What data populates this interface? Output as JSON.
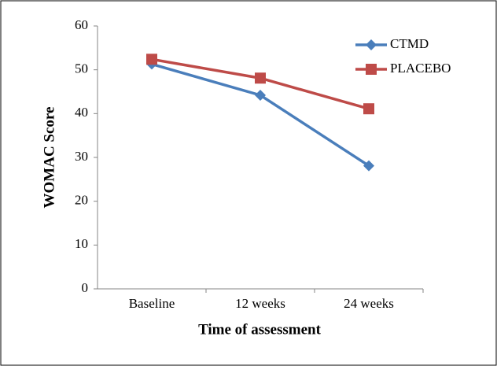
{
  "chart_data": {
    "type": "line",
    "x_label": "Time of assessment",
    "y_label": "WOMAC Score",
    "categories": [
      "Baseline",
      "12 weeks",
      "24 weeks"
    ],
    "series": [
      {
        "name": "CTMD",
        "color": "#4a7ebb",
        "marker": "diamond",
        "values": [
          51.3,
          44.2,
          28.1
        ]
      },
      {
        "name": "PLACEBO",
        "color": "#be4b48",
        "marker": "square",
        "values": [
          52.4,
          48.1,
          41.1
        ]
      }
    ],
    "ylim": [
      0,
      60
    ],
    "yticks": [
      0,
      10,
      20,
      30,
      40,
      50,
      60
    ],
    "grid": false
  }
}
